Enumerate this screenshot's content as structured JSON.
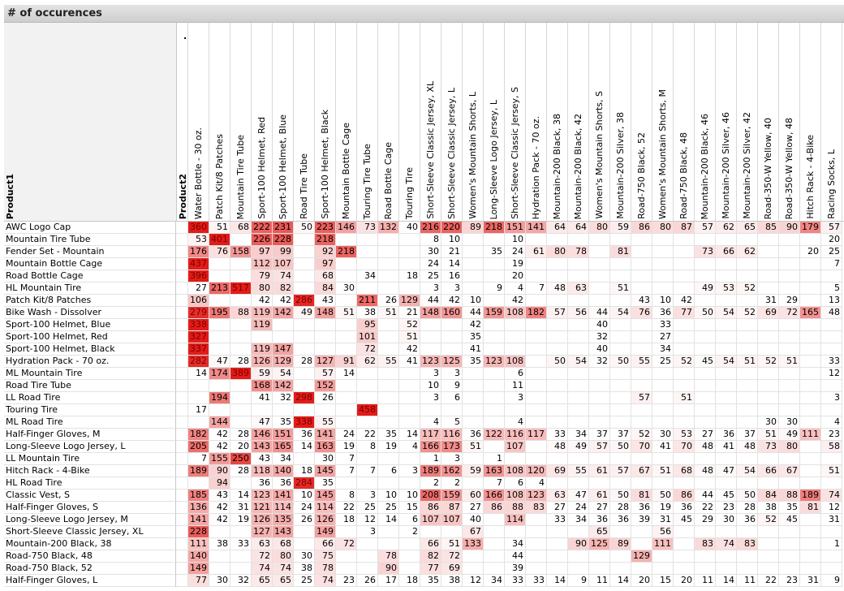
{
  "header": {
    "title": "# of occurences",
    "row_dimension": "Product1",
    "column_dimension": "Product2",
    "column_marker": "."
  },
  "table": {
    "columns": [
      "Water Bottle - 30 oz.",
      "Patch Kit/8 Patches",
      "Mountain Tire Tube",
      "Sport-100 Helmet, Red",
      "Sport-100 Helmet, Blue",
      "Road Tire Tube",
      "Sport-100 Helmet, Black",
      "Mountain Bottle Cage",
      "Touring Tire Tube",
      "Road Bottle Cage",
      "Touring Tire",
      "Short-Sleeve Classic Jersey, XL",
      "Short-Sleeve Classic Jersey, L",
      "Women's Mountain Shorts, L",
      "Long-Sleeve Logo Jersey, L",
      "Short-Sleeve Classic Jersey, S",
      "Hydration Pack - 70 oz.",
      "Mountain-200 Black, 38",
      "Mountain-200 Black, 42",
      "Women's Mountain Shorts, S",
      "Mountain-200 Silver, 38",
      "Road-750 Black, 52",
      "Women's Mountain Shorts, M",
      "Road-750 Black, 48",
      "Mountain-200 Black, 46",
      "Mountain-200 Silver, 46",
      "Mountain-200 Silver, 42",
      "Road-350-W Yellow, 40",
      "Road-350-W Yellow, 48",
      "Hitch Rack - 4-Bike",
      "Racing Socks, L"
    ],
    "rows": [
      {
        "label": "AWC Logo Cap",
        "values": [
          360,
          51,
          68,
          222,
          231,
          50,
          223,
          146,
          73,
          132,
          40,
          216,
          220,
          89,
          218,
          151,
          141,
          64,
          64,
          80,
          59,
          86,
          80,
          87,
          57,
          62,
          65,
          85,
          90,
          179,
          57
        ]
      },
      {
        "label": "Mountain Tire Tube",
        "values": [
          53,
          401,
          null,
          226,
          228,
          null,
          218,
          null,
          null,
          null,
          null,
          8,
          10,
          null,
          null,
          10,
          null,
          null,
          null,
          null,
          null,
          null,
          null,
          null,
          null,
          null,
          null,
          null,
          null,
          null,
          20
        ]
      },
      {
        "label": "Fender Set - Mountain",
        "values": [
          176,
          76,
          158,
          97,
          99,
          null,
          92,
          218,
          null,
          null,
          null,
          30,
          21,
          null,
          35,
          24,
          61,
          80,
          78,
          null,
          81,
          null,
          null,
          null,
          73,
          66,
          62,
          null,
          null,
          20,
          25
        ]
      },
      {
        "label": "Mountain Bottle Cage",
        "values": [
          437,
          null,
          null,
          112,
          107,
          null,
          97,
          null,
          null,
          null,
          null,
          24,
          14,
          null,
          null,
          19,
          null,
          null,
          null,
          null,
          null,
          null,
          null,
          null,
          null,
          null,
          null,
          null,
          null,
          null,
          7
        ]
      },
      {
        "label": "Road Bottle Cage",
        "values": [
          396,
          null,
          null,
          79,
          74,
          null,
          68,
          null,
          34,
          null,
          18,
          25,
          16,
          null,
          null,
          20,
          null,
          null,
          null,
          null,
          null,
          null,
          null,
          null,
          null,
          null,
          null,
          null,
          null,
          null,
          null
        ]
      },
      {
        "label": "HL Mountain Tire",
        "values": [
          27,
          213,
          517,
          80,
          82,
          null,
          84,
          30,
          null,
          null,
          null,
          3,
          3,
          null,
          9,
          4,
          7,
          48,
          63,
          null,
          51,
          null,
          null,
          null,
          49,
          53,
          52,
          null,
          null,
          null,
          5
        ]
      },
      {
        "label": "Patch Kit/8 Patches",
        "values": [
          106,
          null,
          null,
          42,
          42,
          286,
          43,
          null,
          211,
          26,
          129,
          44,
          42,
          10,
          null,
          42,
          null,
          null,
          null,
          null,
          null,
          43,
          10,
          42,
          null,
          null,
          null,
          31,
          29,
          null,
          13
        ]
      },
      {
        "label": "Bike Wash - Dissolver",
        "values": [
          279,
          195,
          88,
          119,
          142,
          49,
          148,
          51,
          38,
          51,
          21,
          148,
          160,
          44,
          159,
          108,
          182,
          57,
          56,
          44,
          54,
          76,
          36,
          77,
          50,
          54,
          52,
          69,
          72,
          165,
          48
        ]
      },
      {
        "label": "Sport-100 Helmet, Blue",
        "values": [
          338,
          null,
          null,
          119,
          null,
          null,
          null,
          null,
          95,
          null,
          52,
          null,
          null,
          42,
          null,
          null,
          null,
          null,
          null,
          40,
          null,
          null,
          33,
          null,
          null,
          null,
          null,
          null,
          null,
          null,
          null
        ]
      },
      {
        "label": "Sport-100 Helmet, Red",
        "values": [
          327,
          null,
          null,
          null,
          null,
          null,
          null,
          null,
          101,
          null,
          51,
          null,
          null,
          35,
          null,
          null,
          null,
          null,
          null,
          32,
          null,
          null,
          27,
          null,
          null,
          null,
          null,
          null,
          null,
          null,
          null
        ]
      },
      {
        "label": "Sport-100 Helmet, Black",
        "values": [
          337,
          null,
          null,
          119,
          147,
          null,
          null,
          null,
          72,
          null,
          42,
          null,
          null,
          41,
          null,
          null,
          null,
          null,
          null,
          40,
          null,
          null,
          34,
          null,
          null,
          null,
          null,
          null,
          null,
          null,
          null
        ]
      },
      {
        "label": "Hydration Pack - 70 oz.",
        "values": [
          282,
          47,
          28,
          126,
          129,
          28,
          127,
          91,
          62,
          55,
          41,
          123,
          125,
          35,
          123,
          108,
          null,
          50,
          54,
          32,
          50,
          55,
          25,
          52,
          45,
          54,
          51,
          52,
          51,
          null,
          33
        ]
      },
      {
        "label": "ML Mountain Tire",
        "values": [
          14,
          174,
          389,
          59,
          54,
          null,
          57,
          14,
          null,
          null,
          null,
          3,
          3,
          null,
          null,
          6,
          null,
          null,
          null,
          null,
          null,
          null,
          null,
          null,
          null,
          null,
          null,
          null,
          null,
          null,
          12
        ]
      },
      {
        "label": "Road Tire Tube",
        "values": [
          null,
          null,
          null,
          168,
          142,
          null,
          152,
          null,
          null,
          null,
          null,
          10,
          9,
          null,
          null,
          11,
          null,
          null,
          null,
          null,
          null,
          null,
          null,
          null,
          null,
          null,
          null,
          null,
          null,
          null,
          null
        ]
      },
      {
        "label": "LL Road Tire",
        "values": [
          null,
          194,
          null,
          41,
          32,
          298,
          26,
          null,
          null,
          null,
          null,
          3,
          6,
          null,
          null,
          3,
          null,
          null,
          null,
          null,
          null,
          57,
          null,
          51,
          null,
          null,
          null,
          null,
          null,
          null,
          3
        ]
      },
      {
        "label": "Touring Tire",
        "values": [
          17,
          null,
          null,
          null,
          null,
          null,
          null,
          null,
          458,
          null,
          null,
          null,
          null,
          null,
          null,
          null,
          null,
          null,
          null,
          null,
          null,
          null,
          null,
          null,
          null,
          null,
          null,
          null,
          null,
          null,
          null
        ]
      },
      {
        "label": "ML Road Tire",
        "values": [
          null,
          144,
          null,
          47,
          35,
          338,
          55,
          null,
          null,
          null,
          null,
          4,
          5,
          null,
          null,
          4,
          null,
          null,
          null,
          null,
          null,
          null,
          null,
          null,
          null,
          null,
          null,
          30,
          30,
          null,
          4
        ]
      },
      {
        "label": "Half-Finger Gloves, M",
        "values": [
          182,
          42,
          28,
          146,
          151,
          36,
          141,
          24,
          22,
          35,
          14,
          117,
          116,
          36,
          122,
          116,
          117,
          33,
          34,
          37,
          37,
          52,
          30,
          53,
          27,
          36,
          37,
          51,
          49,
          111,
          23
        ]
      },
      {
        "label": "Long-Sleeve Logo Jersey, L",
        "values": [
          205,
          42,
          20,
          143,
          165,
          14,
          163,
          19,
          8,
          19,
          4,
          166,
          173,
          51,
          null,
          107,
          null,
          48,
          49,
          57,
          50,
          70,
          41,
          70,
          48,
          41,
          48,
          73,
          80,
          null,
          58
        ]
      },
      {
        "label": "LL Mountain Tire",
        "values": [
          7,
          155,
          250,
          43,
          34,
          null,
          30,
          7,
          null,
          null,
          null,
          1,
          3,
          null,
          1,
          null,
          null,
          null,
          null,
          null,
          null,
          null,
          null,
          null,
          null,
          null,
          null,
          null,
          null,
          null,
          null
        ]
      },
      {
        "label": "Hitch Rack - 4-Bike",
        "values": [
          189,
          90,
          28,
          118,
          140,
          18,
          145,
          7,
          7,
          6,
          3,
          189,
          162,
          59,
          163,
          108,
          120,
          69,
          55,
          61,
          57,
          67,
          51,
          68,
          48,
          47,
          54,
          66,
          67,
          null,
          51
        ]
      },
      {
        "label": "HL Road Tire",
        "values": [
          null,
          94,
          null,
          36,
          36,
          284,
          35,
          null,
          null,
          null,
          null,
          2,
          2,
          null,
          7,
          6,
          4,
          null,
          null,
          null,
          null,
          null,
          null,
          null,
          null,
          null,
          null,
          null,
          null,
          null,
          null
        ]
      },
      {
        "label": "Classic Vest, S",
        "values": [
          185,
          43,
          14,
          123,
          141,
          10,
          145,
          8,
          3,
          10,
          10,
          208,
          159,
          60,
          166,
          108,
          123,
          63,
          47,
          61,
          50,
          81,
          50,
          86,
          44,
          45,
          50,
          84,
          88,
          189,
          74
        ]
      },
      {
        "label": "Half-Finger Gloves, S",
        "values": [
          136,
          42,
          31,
          121,
          114,
          24,
          114,
          22,
          25,
          25,
          15,
          86,
          87,
          27,
          86,
          88,
          83,
          27,
          24,
          27,
          28,
          36,
          19,
          36,
          22,
          23,
          28,
          38,
          35,
          81,
          12
        ]
      },
      {
        "label": "Long-Sleeve Logo Jersey, M",
        "values": [
          141,
          42,
          19,
          126,
          135,
          26,
          126,
          18,
          12,
          14,
          6,
          107,
          107,
          40,
          null,
          114,
          null,
          33,
          34,
          36,
          36,
          39,
          31,
          45,
          29,
          30,
          36,
          52,
          45,
          null,
          31
        ]
      },
      {
        "label": "Short-Sleeve Classic Jersey, XL",
        "values": [
          228,
          null,
          null,
          127,
          143,
          null,
          149,
          null,
          3,
          null,
          2,
          null,
          null,
          67,
          null,
          null,
          null,
          null,
          null,
          65,
          null,
          null,
          56,
          null,
          null,
          null,
          null,
          null,
          null,
          null,
          null
        ]
      },
      {
        "label": "Mountain-200 Black, 38",
        "values": [
          111,
          38,
          33,
          63,
          68,
          null,
          66,
          72,
          null,
          null,
          null,
          66,
          51,
          133,
          null,
          34,
          null,
          null,
          90,
          125,
          89,
          null,
          111,
          null,
          83,
          74,
          83,
          null,
          null,
          null,
          1
        ]
      },
      {
        "label": "Road-750 Black, 48",
        "values": [
          140,
          null,
          null,
          72,
          80,
          30,
          75,
          null,
          null,
          78,
          null,
          82,
          72,
          null,
          null,
          44,
          null,
          null,
          null,
          null,
          null,
          129,
          null,
          null,
          null,
          null,
          null,
          null,
          null,
          null,
          null
        ]
      },
      {
        "label": "Road-750 Black, 52",
        "values": [
          149,
          null,
          null,
          74,
          74,
          38,
          78,
          null,
          null,
          90,
          null,
          77,
          69,
          null,
          null,
          39,
          null,
          null,
          null,
          null,
          null,
          null,
          null,
          null,
          null,
          null,
          null,
          null,
          null,
          null,
          null
        ]
      },
      {
        "label": "Half-Finger Gloves, L",
        "values": [
          77,
          30,
          32,
          65,
          65,
          25,
          74,
          23,
          26,
          17,
          18,
          35,
          38,
          12,
          34,
          33,
          33,
          14,
          9,
          11,
          14,
          20,
          15,
          20,
          11,
          14,
          11,
          22,
          23,
          31,
          9
        ]
      }
    ]
  }
}
